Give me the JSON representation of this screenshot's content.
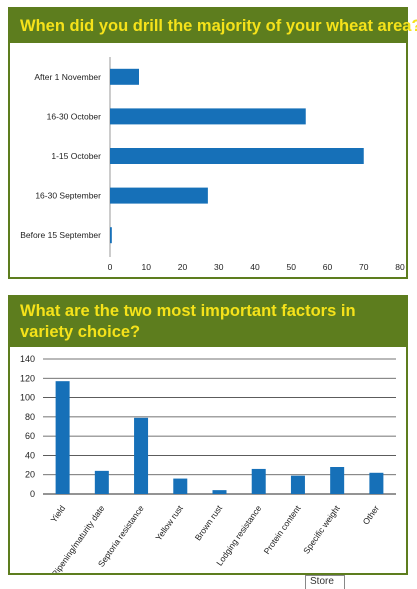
{
  "chart_data": [
    {
      "type": "bar",
      "orientation": "horizontal",
      "title": "When did you drill the majority of your wheat area?",
      "categories": [
        "After 1 November",
        "16-30 October",
        "1-15 October",
        "16-30 September",
        "Before 15 September"
      ],
      "values": [
        8,
        54,
        70,
        27,
        0.5
      ],
      "xlim": [
        0,
        80
      ],
      "xticks": [
        "0",
        "10",
        "20",
        "30",
        "40",
        "50",
        "60",
        "70",
        "80"
      ],
      "grid": false,
      "bar_color": "#1670b8"
    },
    {
      "type": "bar",
      "orientation": "vertical",
      "title": "What are the two most important factors in variety choice?",
      "categories": [
        "Yield",
        "Ripening/maturity date",
        "Septoria resistance",
        "Yellow rust",
        "Brown rust",
        "Lodging resistance",
        "Protein content",
        "Specific weight",
        "Other"
      ],
      "values": [
        117,
        24,
        79,
        16,
        4,
        26,
        19,
        28,
        22
      ],
      "ylim": [
        0,
        140
      ],
      "yticks": [
        "0",
        "20",
        "40",
        "60",
        "80",
        "100",
        "120",
        "140"
      ],
      "grid": true,
      "bar_color": "#1670b8"
    }
  ],
  "footer": {
    "store_label": "Store"
  },
  "colors": {
    "header_bg": "#5d7d1e",
    "header_text": "#f5e21a",
    "bar": "#1670b8"
  }
}
